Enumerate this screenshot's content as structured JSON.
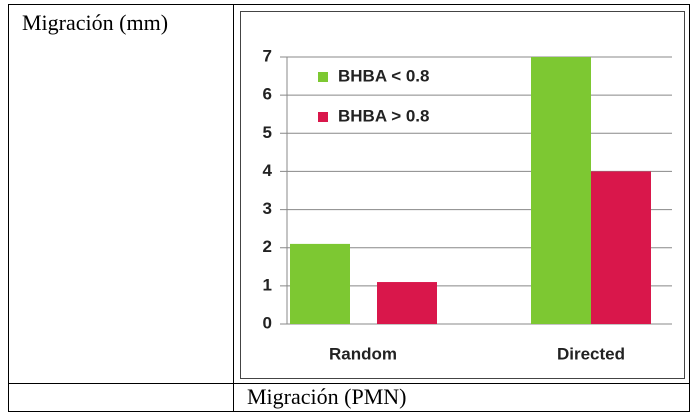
{
  "chart_data": {
    "type": "bar",
    "ylabel": "Migración (mm)",
    "xlabel": "Migración (PMN)",
    "categories": [
      "Random",
      "Directed"
    ],
    "series": [
      {
        "name": "BHBA < 0.8",
        "color": "#7dc832",
        "values": [
          2.1,
          7
        ]
      },
      {
        "name": "BHBA > 0.8",
        "color": "#d9174b",
        "values": [
          1.1,
          4
        ]
      }
    ],
    "ylim": [
      0,
      7
    ],
    "yticks": [
      0,
      1,
      2,
      3,
      4,
      5,
      6,
      7
    ],
    "grid": true,
    "legend": "top-left"
  }
}
